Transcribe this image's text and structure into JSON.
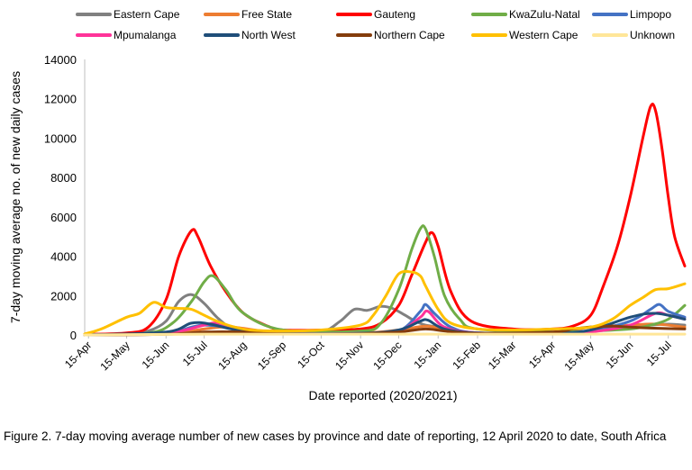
{
  "caption": "Figure 2. 7-day moving average number of new cases by province and date of reporting, 12 April 2020 to date, South Africa",
  "chart_data": {
    "type": "line",
    "xlabel": "Date reported (2020/2021)",
    "ylabel": "7-day moving average no. of new daily cases",
    "ylim": [
      0,
      14000
    ],
    "yticks": [
      0,
      2000,
      4000,
      6000,
      8000,
      10000,
      12000,
      14000
    ],
    "x_ticks": [
      "15-Apr",
      "15-May",
      "15-Jun",
      "15-Jul",
      "15-Aug",
      "15-Sep",
      "15-Oct",
      "15-Nov",
      "15-Dec",
      "15-Jan",
      "15-Feb",
      "15-Mar",
      "15-Apr",
      "15-May",
      "15-Jun",
      "15-Jul"
    ],
    "x_tick_dates": [
      "2020-04-15",
      "2020-05-15",
      "2020-06-15",
      "2020-07-15",
      "2020-08-15",
      "2020-09-15",
      "2020-10-15",
      "2020-11-15",
      "2020-12-15",
      "2021-01-15",
      "2021-02-15",
      "2021-03-15",
      "2021-04-15",
      "2021-05-15",
      "2021-06-15",
      "2021-07-15"
    ],
    "xlim": [
      "2020-04-12",
      "2021-07-28"
    ],
    "grid": false,
    "legend_placement": "top",
    "series": [
      {
        "name": "Eastern Cape",
        "color": "#808080",
        "x": [
          "2020-04-12",
          "2020-05-15",
          "2020-06-01",
          "2020-06-15",
          "2020-06-25",
          "2020-07-05",
          "2020-07-15",
          "2020-07-25",
          "2020-08-05",
          "2020-08-20",
          "2020-09-15",
          "2020-10-15",
          "2020-10-30",
          "2020-11-10",
          "2020-11-20",
          "2020-12-01",
          "2020-12-10",
          "2020-12-20",
          "2020-12-28",
          "2021-01-05",
          "2021-01-15",
          "2021-01-25",
          "2021-02-10",
          "2021-03-15",
          "2021-04-15",
          "2021-05-15",
          "2021-06-15",
          "2021-07-01",
          "2021-07-15",
          "2021-07-28"
        ],
        "y": [
          20,
          80,
          200,
          700,
          1700,
          2050,
          1600,
          900,
          350,
          150,
          80,
          150,
          700,
          1300,
          1250,
          1450,
          1350,
          1000,
          700,
          500,
          400,
          200,
          100,
          80,
          100,
          200,
          400,
          500,
          550,
          500
        ]
      },
      {
        "name": "Free State",
        "color": "#ED7D31",
        "x": [
          "2020-04-12",
          "2020-06-15",
          "2020-07-15",
          "2020-08-05",
          "2020-09-15",
          "2020-11-15",
          "2020-12-15",
          "2021-01-05",
          "2021-01-20",
          "2021-02-15",
          "2021-04-15",
          "2021-05-15",
          "2021-06-15",
          "2021-07-05",
          "2021-07-28"
        ],
        "y": [
          0,
          50,
          300,
          400,
          100,
          100,
          250,
          450,
          300,
          100,
          100,
          400,
          500,
          550,
          400
        ]
      },
      {
        "name": "Gauteng",
        "color": "#FF0000",
        "x": [
          "2020-04-12",
          "2020-05-15",
          "2020-06-01",
          "2020-06-15",
          "2020-06-25",
          "2020-07-05",
          "2020-07-10",
          "2020-07-20",
          "2020-08-01",
          "2020-08-15",
          "2020-09-01",
          "2020-09-15",
          "2020-10-15",
          "2020-11-15",
          "2020-12-01",
          "2020-12-15",
          "2020-12-25",
          "2021-01-05",
          "2021-01-10",
          "2021-01-15",
          "2021-01-25",
          "2021-02-10",
          "2021-03-15",
          "2021-04-15",
          "2021-05-01",
          "2021-05-15",
          "2021-05-25",
          "2021-06-05",
          "2021-06-15",
          "2021-06-25",
          "2021-07-01",
          "2021-07-05",
          "2021-07-10",
          "2021-07-15",
          "2021-07-20",
          "2021-07-28"
        ],
        "y": [
          30,
          100,
          400,
          1800,
          4000,
          5300,
          5000,
          3500,
          2200,
          1100,
          500,
          250,
          250,
          300,
          600,
          1500,
          3000,
          4700,
          5200,
          4500,
          2200,
          700,
          300,
          300,
          450,
          1000,
          2500,
          4500,
          7000,
          10000,
          11600,
          11400,
          9500,
          7000,
          5000,
          3500
        ]
      },
      {
        "name": "KwaZulu-Natal",
        "color": "#70AD47",
        "x": [
          "2020-04-12",
          "2020-06-01",
          "2020-06-20",
          "2020-07-05",
          "2020-07-15",
          "2020-07-22",
          "2020-08-01",
          "2020-08-15",
          "2020-09-15",
          "2020-11-15",
          "2020-12-01",
          "2020-12-15",
          "2020-12-25",
          "2021-01-01",
          "2021-01-05",
          "2021-01-12",
          "2021-01-20",
          "2021-02-01",
          "2021-02-15",
          "2021-04-15",
          "2021-05-15",
          "2021-06-15",
          "2021-07-01",
          "2021-07-15",
          "2021-07-28"
        ],
        "y": [
          20,
          100,
          600,
          1700,
          2700,
          3000,
          2300,
          1100,
          250,
          200,
          600,
          2300,
          4300,
          5400,
          5400,
          4000,
          2000,
          800,
          300,
          150,
          200,
          300,
          500,
          800,
          1500
        ]
      },
      {
        "name": "Limpopo",
        "color": "#4472C4",
        "x": [
          "2020-04-12",
          "2020-06-15",
          "2020-07-05",
          "2020-07-15",
          "2020-08-01",
          "2020-08-15",
          "2020-09-15",
          "2020-11-15",
          "2020-12-15",
          "2021-01-01",
          "2021-01-05",
          "2021-01-12",
          "2021-01-25",
          "2021-02-15",
          "2021-04-15",
          "2021-05-15",
          "2021-06-15",
          "2021-07-01",
          "2021-07-08",
          "2021-07-15",
          "2021-07-28"
        ],
        "y": [
          0,
          100,
          400,
          500,
          400,
          200,
          80,
          80,
          200,
          1200,
          1550,
          1100,
          400,
          100,
          80,
          200,
          700,
          1300,
          1550,
          1200,
          900
        ]
      },
      {
        "name": "Mpumalanga",
        "color": "#FF3399",
        "x": [
          "2020-04-12",
          "2020-06-15",
          "2020-07-15",
          "2020-07-25",
          "2020-08-15",
          "2020-09-15",
          "2020-11-15",
          "2020-12-15",
          "2021-01-01",
          "2021-01-07",
          "2021-01-20",
          "2021-02-15",
          "2021-04-15",
          "2021-05-15",
          "2021-06-15",
          "2021-07-05",
          "2021-07-15",
          "2021-07-28"
        ],
        "y": [
          0,
          100,
          500,
          600,
          300,
          80,
          80,
          200,
          900,
          1200,
          400,
          100,
          80,
          150,
          500,
          1100,
          1000,
          800
        ]
      },
      {
        "name": "North West",
        "color": "#1F4E79",
        "x": [
          "2020-04-12",
          "2020-06-15",
          "2020-07-05",
          "2020-07-20",
          "2020-08-10",
          "2020-09-15",
          "2020-11-15",
          "2020-12-15",
          "2021-01-01",
          "2021-01-07",
          "2021-01-20",
          "2021-02-15",
          "2021-04-15",
          "2021-05-15",
          "2021-06-15",
          "2021-07-05",
          "2021-07-28"
        ],
        "y": [
          0,
          150,
          600,
          550,
          250,
          80,
          80,
          250,
          700,
          750,
          300,
          100,
          80,
          250,
          900,
          1100,
          800
        ]
      },
      {
        "name": "Northern Cape",
        "color": "#843C0C",
        "x": [
          "2020-04-12",
          "2020-06-15",
          "2020-07-15",
          "2020-08-15",
          "2020-09-15",
          "2020-11-15",
          "2020-12-15",
          "2021-01-05",
          "2021-01-20",
          "2021-02-15",
          "2021-04-15",
          "2021-05-01",
          "2021-05-15",
          "2021-06-01",
          "2021-06-15",
          "2021-07-01",
          "2021-07-28"
        ],
        "y": [
          0,
          30,
          150,
          150,
          60,
          60,
          150,
          300,
          200,
          80,
          150,
          300,
          400,
          450,
          400,
          350,
          300
        ]
      },
      {
        "name": "Western Cape",
        "color": "#FFC000",
        "x": [
          "2020-04-12",
          "2020-04-25",
          "2020-05-15",
          "2020-05-25",
          "2020-06-05",
          "2020-06-15",
          "2020-06-25",
          "2020-07-05",
          "2020-07-15",
          "2020-07-25",
          "2020-08-05",
          "2020-08-20",
          "2020-09-15",
          "2020-10-15",
          "2020-11-15",
          "2020-11-25",
          "2020-12-05",
          "2020-12-15",
          "2020-12-25",
          "2021-01-01",
          "2021-01-05",
          "2021-01-15",
          "2021-01-25",
          "2021-02-15",
          "2021-03-15",
          "2021-04-15",
          "2021-05-15",
          "2021-06-01",
          "2021-06-15",
          "2021-06-25",
          "2021-07-05",
          "2021-07-15",
          "2021-07-28"
        ],
        "y": [
          50,
          300,
          900,
          1100,
          1650,
          1400,
          1350,
          1300,
          1000,
          700,
          450,
          250,
          200,
          250,
          500,
          1000,
          2000,
          3100,
          3200,
          3000,
          2500,
          1300,
          600,
          300,
          250,
          300,
          400,
          800,
          1500,
          1900,
          2300,
          2350,
          2600
        ]
      },
      {
        "name": "Unknown",
        "color": "#FFE699",
        "x": [
          "2020-04-12",
          "2020-07-15",
          "2021-01-15",
          "2021-07-28"
        ],
        "y": [
          0,
          40,
          40,
          40
        ]
      }
    ]
  }
}
